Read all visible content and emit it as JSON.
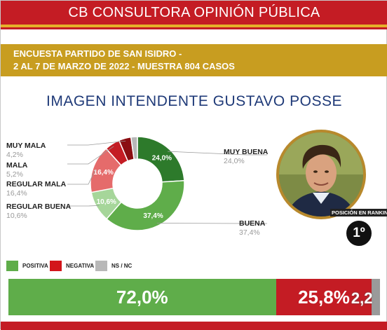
{
  "header": {
    "title": "CB CONSULTORA OPINIÓN PÚBLICA"
  },
  "survey": {
    "line1": "ENCUESTA PARTIDO DE SAN ISIDRO -",
    "line2": "2 AL 7 DE MARZO DE 2022  - MUESTRA 804 CASOS"
  },
  "headline": "IMAGEN INTENDENTE  GUSTAVO POSSE",
  "portrait": {
    "rank_caption": "POSICIÓN EN RANKING",
    "rank": "1º"
  },
  "legend": [
    {
      "label": "POSITIVA",
      "color": "#5fad4a"
    },
    {
      "label": "NEGATIVA",
      "color": "#d3151b"
    },
    {
      "label": "NS / NC",
      "color": "#b8b8b8"
    }
  ],
  "chart_data": [
    {
      "type": "pie",
      "donut": true,
      "categories": [
        "MUY BUENA",
        "BUENA",
        "REGULAR BUENA",
        "REGULAR MALA",
        "MALA",
        "MUY MALA",
        "NS / NC"
      ],
      "values": [
        24.0,
        37.4,
        10.6,
        16.4,
        5.2,
        4.2,
        2.2
      ],
      "value_labels": [
        "24,0%",
        "37,4%",
        "10,6%",
        "16,4%",
        "5,2%",
        "4,2%",
        "2,2%"
      ],
      "colors": [
        "#2d7a2b",
        "#5fad4a",
        "#a6d69a",
        "#e56b6b",
        "#c41c24",
        "#8b0e12",
        "#b8b8b8"
      ],
      "callouts": [
        {
          "name": "MUY BUENA",
          "value": "24,0%"
        },
        {
          "name": "BUENA",
          "value": "37,4%"
        },
        {
          "name": "REGULAR BUENA",
          "value": "10,6%"
        },
        {
          "name": "REGULAR MALA",
          "value": "16,4%"
        },
        {
          "name": "MALA",
          "value": "5,2%"
        },
        {
          "name": "MUY MALA",
          "value": "4,2%"
        }
      ]
    },
    {
      "type": "bar",
      "orientation": "horizontal-stacked",
      "categories": [
        "POSITIVA",
        "NEGATIVA",
        "NS / NC"
      ],
      "values": [
        72.0,
        25.8,
        2.2
      ],
      "value_labels": [
        "72,0%",
        "25,8%",
        "2,2"
      ],
      "colors": [
        "#5fad4a",
        "#c41c24",
        "#9a9a9a"
      ]
    }
  ]
}
